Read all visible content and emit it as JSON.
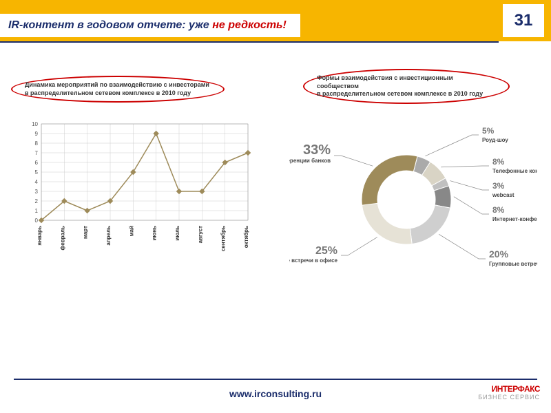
{
  "header": {
    "title_part1": "IR-контент в годовом отчете: уже ",
    "title_part2": "не редкость!",
    "page_number": "31",
    "bg_color": "#f7b500",
    "accent_color": "#1b2d6b",
    "highlight_color": "#cc0000"
  },
  "left_caption": {
    "line1": "Динамика мероприятий по взаимодействию с инвесторами",
    "line2": "в распределительном сетевом комплексе в 2010 году"
  },
  "right_caption": {
    "line1": "Формы взаимодействия с инвестиционным сообществом",
    "line2": "в распределительном сетевом комплексе в 2010 году"
  },
  "line_chart": {
    "type": "line",
    "months": [
      "январь",
      "февраль",
      "март",
      "апрель",
      "май",
      "июнь",
      "июль",
      "август",
      "сентябрь",
      "октябрь"
    ],
    "values": [
      0,
      2,
      1,
      2,
      5,
      9,
      3,
      3,
      6,
      7
    ],
    "ylim": [
      0,
      10
    ],
    "ytick_step": 1,
    "line_color": "#9e8b5a",
    "marker_color": "#9e8b5a",
    "grid_color": "#cccccc",
    "plot_bg": "#ffffff",
    "line_width": 1.5,
    "marker_size": 3
  },
  "donut_chart": {
    "type": "donut",
    "segments": [
      {
        "label": "Конференции банков",
        "pct": 33,
        "color": "#9e8b5a"
      },
      {
        "label": "Роуд-шоу",
        "pct": 5,
        "color": "#aaaaaa"
      },
      {
        "label": "Телефонные конференции",
        "pct": 8,
        "color": "#d9d4c5"
      },
      {
        "label": "webcast",
        "pct": 3,
        "color": "#c0c0c0"
      },
      {
        "label": "Интернет-конференции",
        "pct": 8,
        "color": "#888888"
      },
      {
        "label": "Групповые встречи в офисе",
        "pct": 20,
        "color": "#cfcfcf"
      },
      {
        "label": "Индивидуальные встречи в офисе",
        "pct": 25,
        "color": "#e6e2d6"
      }
    ],
    "inner_radius": 42,
    "outer_radius": 65,
    "center_bg": "#ffffff",
    "leader_color": "#888888"
  },
  "footer": {
    "url": "www.irconsulting.ru",
    "logo_top": "ИНТЕРФАКС",
    "logo_bottom": "БИЗНЕС СЕРВИС"
  }
}
